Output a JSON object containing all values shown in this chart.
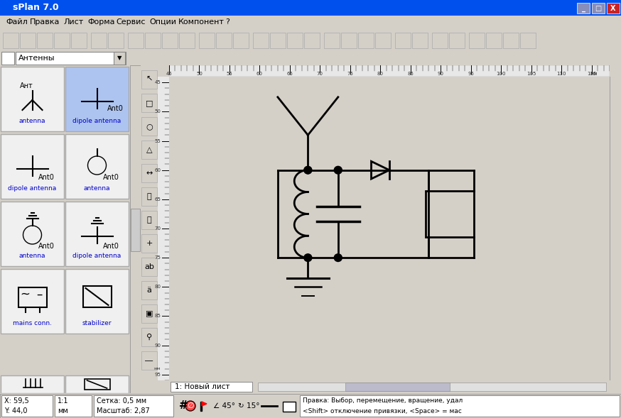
{
  "title": "sPlan 7.0",
  "bg_color": "#d4d0c8",
  "titlebar_color": "#0050ee",
  "titlebar_text": "sPlan 7.0",
  "menu_items": [
    "Файл",
    "Правка",
    "Лист",
    "Форма",
    "Сервис",
    "Опции",
    "Компонент",
    "?"
  ],
  "dropdown_label": "Антенны",
  "canvas_bg": "#ffffee",
  "statusbar_left": "X: 59,5\nY: 44,0",
  "statusbar_scale": "1:1\nмм",
  "statusbar_grid": "Сетка: 0,5 мм\nМасштаб: 2,87",
  "statusbar_angle1": "∠ 45°",
  "statusbar_angle2": "↻ 15°",
  "statusbar_right": "Правка: Выбор, перемещение, вращение, удал\n<Shift> отключение привязки, <Space> = мас",
  "tab_label": "1: Новый лист"
}
